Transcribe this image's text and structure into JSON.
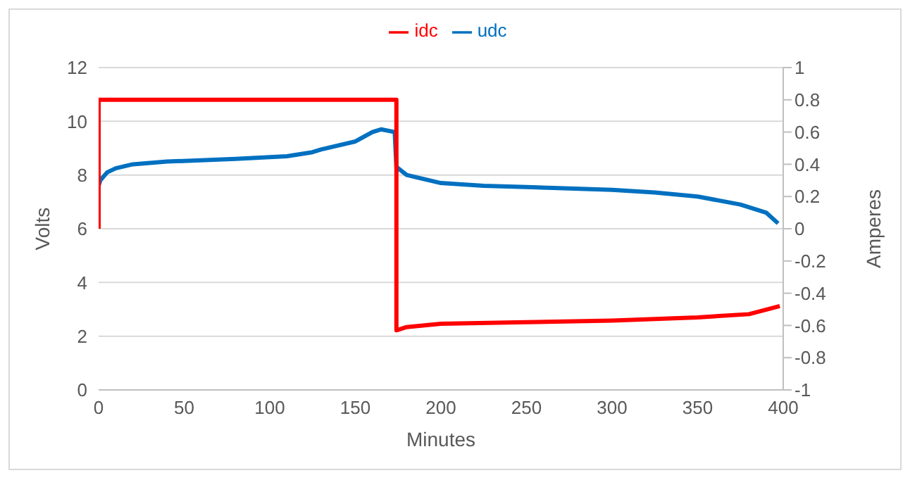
{
  "chart_data": {
    "type": "line",
    "xlabel": "Minutes",
    "ylabel": "Volts",
    "y2label": "Amperes",
    "xlim": [
      0,
      400
    ],
    "xticks": [
      0,
      50,
      100,
      150,
      200,
      250,
      300,
      350,
      400
    ],
    "ylim": [
      0,
      12
    ],
    "yticks": [
      0,
      2,
      4,
      6,
      8,
      10,
      12
    ],
    "y2lim": [
      -1,
      1
    ],
    "y2ticks": [
      -1,
      -0.8,
      -0.6,
      -0.4,
      -0.2,
      0,
      0.2,
      0.4,
      0.6,
      0.8,
      1
    ],
    "grid": "y",
    "legend": "top",
    "marker": "none",
    "line_style": "solid",
    "series": [
      {
        "name": "udc",
        "color": "#0070c0",
        "x": [
          0,
          1,
          5,
          10,
          20,
          40,
          80,
          110,
          125,
          130,
          150,
          160,
          165,
          173,
          174,
          180,
          200,
          225,
          250,
          300,
          325,
          350,
          375,
          390,
          397
        ],
        "values": [
          7.6,
          7.8,
          8.1,
          8.25,
          8.4,
          8.5,
          8.6,
          8.7,
          8.85,
          8.95,
          9.25,
          9.6,
          9.7,
          9.6,
          8.3,
          8.0,
          7.7,
          7.6,
          7.55,
          7.45,
          7.35,
          7.2,
          6.9,
          6.6,
          6.2
        ]
      },
      {
        "name": "idc",
        "color": "#ff0000",
        "axis": "y2",
        "x": [
          0,
          0,
          174,
          174,
          180,
          200,
          250,
          300,
          350,
          380,
          398
        ],
        "values": [
          0,
          0.8,
          0.8,
          -0.63,
          -0.61,
          -0.59,
          -0.58,
          -0.57,
          -0.55,
          -0.53,
          -0.48
        ]
      }
    ]
  }
}
